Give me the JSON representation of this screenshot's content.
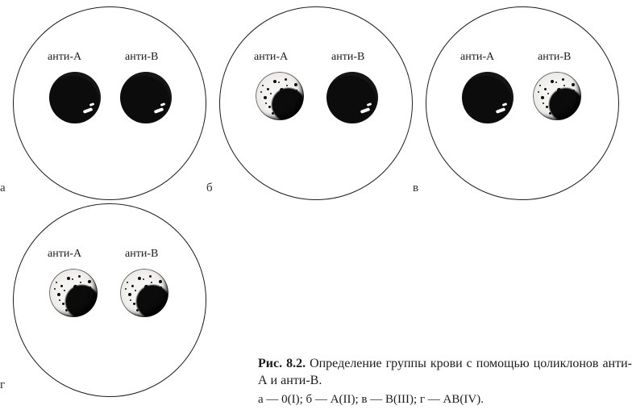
{
  "figure": {
    "title": "Рис. 8.2.",
    "description": "Определение группы крови с помощью цоликлонов анти-А и анти-В.",
    "legend": "а — 0(I); б — А(II); в — В(III); г — АВ(IV)."
  },
  "labels": {
    "antiA": "анти-А",
    "antiB": "анти-В"
  },
  "colors": {
    "stroke": "#1c1c1c",
    "solid_fill": "#0c0c0c",
    "agg_fill": "#f4f4f2",
    "bg": "#ffffff",
    "text": "#1c1c1c"
  },
  "dish_diameter": 240,
  "drop_diameter": 64,
  "drop_agg_diameter": 60,
  "panels": [
    {
      "letter": "а",
      "row": 0,
      "left_type": "solid",
      "right_type": "solid"
    },
    {
      "letter": "б",
      "row": 0,
      "left_type": "agg",
      "right_type": "solid"
    },
    {
      "letter": "в",
      "row": 0,
      "left_type": "solid",
      "right_type": "agg"
    },
    {
      "letter": "г",
      "row": 1,
      "left_type": "agg",
      "right_type": "agg"
    }
  ],
  "speck_positions": [
    [
      22,
      10,
      4
    ],
    [
      36,
      8,
      3
    ],
    [
      48,
      14,
      4
    ],
    [
      14,
      20,
      3
    ],
    [
      30,
      20,
      5
    ],
    [
      44,
      24,
      3
    ],
    [
      10,
      30,
      4
    ],
    [
      24,
      32,
      3
    ],
    [
      40,
      34,
      4
    ],
    [
      16,
      42,
      3
    ],
    [
      30,
      44,
      4
    ],
    [
      46,
      40,
      3
    ],
    [
      8,
      16,
      2
    ],
    [
      52,
      30,
      2
    ],
    [
      20,
      50,
      3
    ],
    [
      12,
      38,
      2
    ],
    [
      38,
      16,
      2
    ],
    [
      50,
      22,
      2
    ],
    [
      6,
      24,
      2
    ],
    [
      28,
      12,
      2
    ],
    [
      34,
      28,
      2
    ],
    [
      18,
      26,
      2
    ]
  ]
}
